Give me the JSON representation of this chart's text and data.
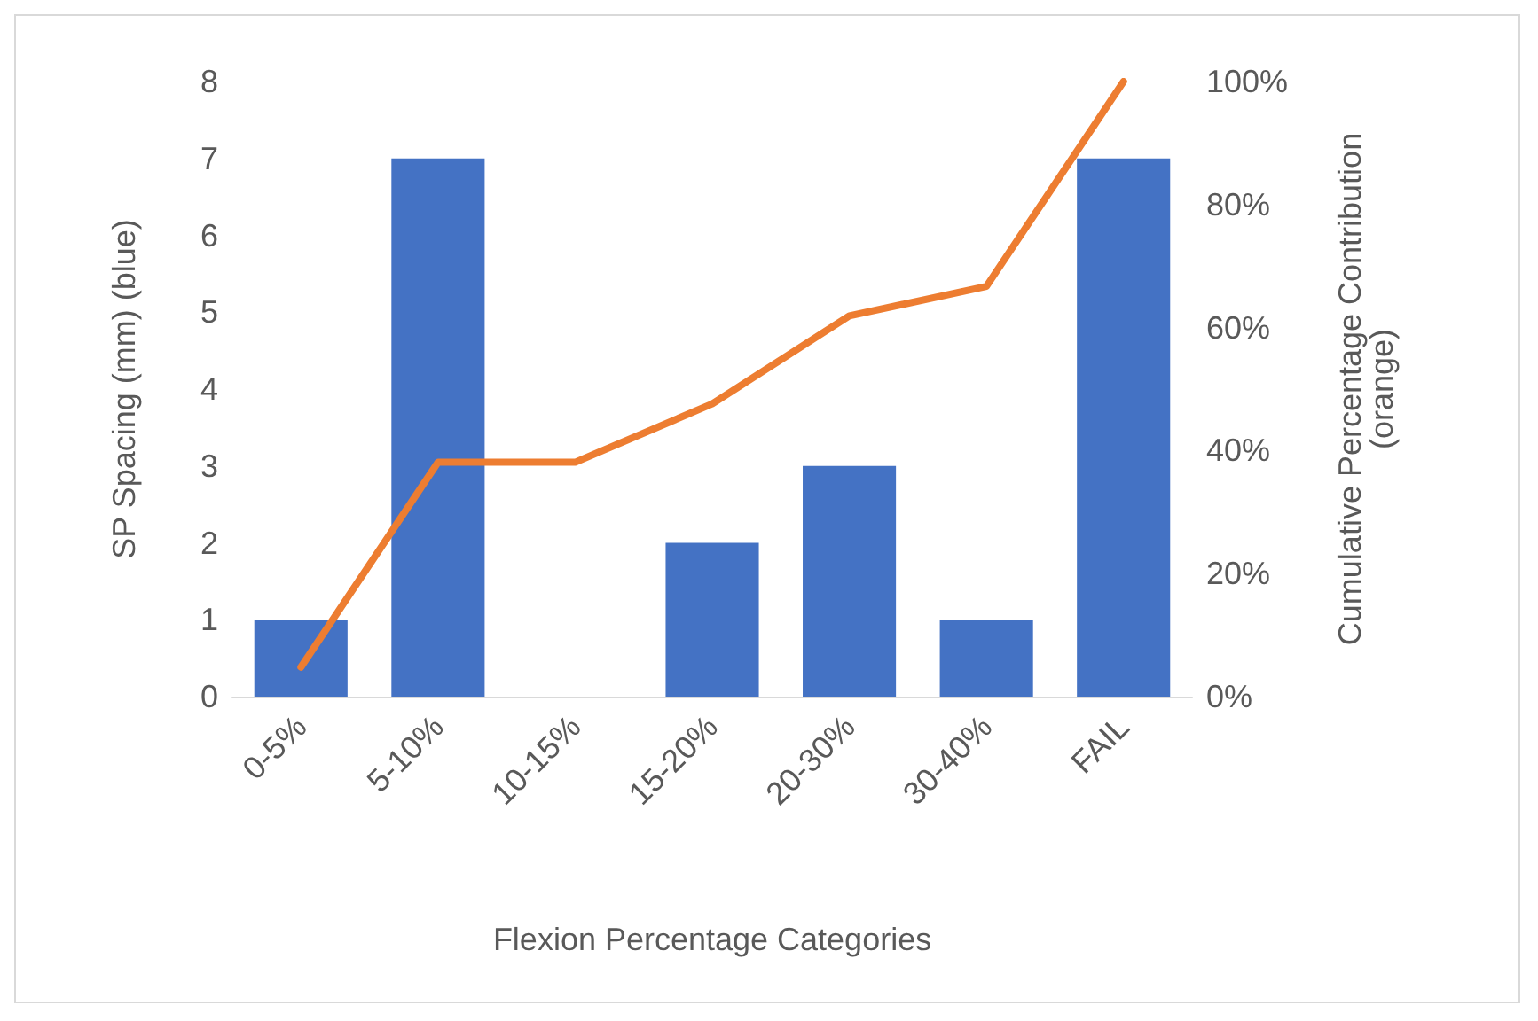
{
  "chart_data": {
    "type": "bar",
    "xlabel": "Flexion Percentage Categories",
    "ylabel": "SP Spacing (mm) (blue)",
    "y2label": "Cumulative Percentage Contribution\n(orange)",
    "categories": [
      "0-5%",
      "5-10%",
      "10-15%",
      "15-20%",
      "20-30%",
      "30-40%",
      "FAIL"
    ],
    "series": [
      {
        "color": "#4472c4",
        "values": [
          1,
          7,
          0,
          2,
          3,
          1,
          7
        ]
      },
      {
        "type": "line",
        "axis": "y2",
        "color": "#ed7d31",
        "values": [
          4.8,
          38.1,
          38.1,
          47.6,
          61.9,
          66.7,
          100
        ]
      }
    ],
    "ylim": [
      0,
      8
    ],
    "yticks": [
      0,
      1,
      2,
      3,
      4,
      5,
      6,
      7,
      8
    ],
    "y2lim": [
      0,
      100
    ],
    "y2ticks": [
      {
        "value": 0,
        "label": "0%"
      },
      {
        "value": 20,
        "label": "20%"
      },
      {
        "value": 40,
        "label": "40%"
      },
      {
        "value": 60,
        "label": "60%"
      },
      {
        "value": 80,
        "label": "80%"
      },
      {
        "value": 100,
        "label": "100%"
      }
    ],
    "grid": false,
    "marker": "none"
  }
}
